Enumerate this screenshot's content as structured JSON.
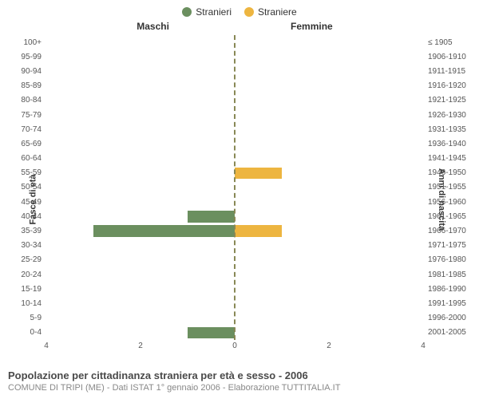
{
  "legend": {
    "male": {
      "label": "Stranieri",
      "color": "#6b8f5f"
    },
    "female": {
      "label": "Straniere",
      "color": "#edb540"
    }
  },
  "chart": {
    "type": "population-pyramid",
    "x_max": 4,
    "x_ticks": [
      4,
      2,
      0,
      2,
      4
    ],
    "center_line_color": "#888855",
    "background_color": "#ffffff",
    "male_header": "Maschi",
    "female_header": "Femmine",
    "y_left_title": "Fasce di età",
    "y_right_title": "Anni di nascita",
    "rows": [
      {
        "age": "100+",
        "birth": "≤ 1905",
        "m": 0,
        "f": 0
      },
      {
        "age": "95-99",
        "birth": "1906-1910",
        "m": 0,
        "f": 0
      },
      {
        "age": "90-94",
        "birth": "1911-1915",
        "m": 0,
        "f": 0
      },
      {
        "age": "85-89",
        "birth": "1916-1920",
        "m": 0,
        "f": 0
      },
      {
        "age": "80-84",
        "birth": "1921-1925",
        "m": 0,
        "f": 0
      },
      {
        "age": "75-79",
        "birth": "1926-1930",
        "m": 0,
        "f": 0
      },
      {
        "age": "70-74",
        "birth": "1931-1935",
        "m": 0,
        "f": 0
      },
      {
        "age": "65-69",
        "birth": "1936-1940",
        "m": 0,
        "f": 0
      },
      {
        "age": "60-64",
        "birth": "1941-1945",
        "m": 0,
        "f": 0
      },
      {
        "age": "55-59",
        "birth": "1946-1950",
        "m": 0,
        "f": 1
      },
      {
        "age": "50-54",
        "birth": "1951-1955",
        "m": 0,
        "f": 0
      },
      {
        "age": "45-49",
        "birth": "1956-1960",
        "m": 0,
        "f": 0
      },
      {
        "age": "40-44",
        "birth": "1961-1965",
        "m": 1,
        "f": 0
      },
      {
        "age": "35-39",
        "birth": "1966-1970",
        "m": 3,
        "f": 1
      },
      {
        "age": "30-34",
        "birth": "1971-1975",
        "m": 0,
        "f": 0
      },
      {
        "age": "25-29",
        "birth": "1976-1980",
        "m": 0,
        "f": 0
      },
      {
        "age": "20-24",
        "birth": "1981-1985",
        "m": 0,
        "f": 0
      },
      {
        "age": "15-19",
        "birth": "1986-1990",
        "m": 0,
        "f": 0
      },
      {
        "age": "10-14",
        "birth": "1991-1995",
        "m": 0,
        "f": 0
      },
      {
        "age": "5-9",
        "birth": "1996-2000",
        "m": 0,
        "f": 0
      },
      {
        "age": "0-4",
        "birth": "2001-2005",
        "m": 1,
        "f": 0
      }
    ]
  },
  "footer": {
    "title": "Popolazione per cittadinanza straniera per età e sesso - 2006",
    "subtitle": "COMUNE DI TRIPI (ME) - Dati ISTAT 1° gennaio 2006 - Elaborazione TUTTITALIA.IT"
  }
}
